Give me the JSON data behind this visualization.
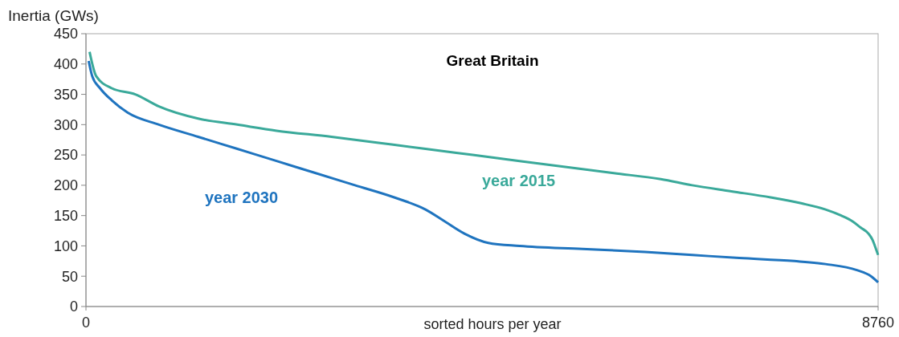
{
  "chart_data": {
    "type": "line",
    "title": "Great Britain",
    "ylabel": "Inertia (GWs)",
    "xlabel": "sorted hours per year",
    "xlim": [
      0,
      8760
    ],
    "xticks": [
      0,
      8760
    ],
    "ylim": [
      0,
      450
    ],
    "yticks": [
      0,
      50,
      100,
      150,
      200,
      250,
      300,
      350,
      400,
      450
    ],
    "grid": false,
    "legend": false,
    "marker": "none",
    "line_style": "solid",
    "series": [
      {
        "name": "year 2015",
        "color": "#3aa99a",
        "x": [
          40,
          113,
          286,
          546,
          807,
          1240,
          1674,
          2108,
          2715,
          3235,
          3755,
          4276,
          4796,
          5317,
          5837,
          6357,
          6704,
          7138,
          7571,
          7918,
          8179,
          8352,
          8482,
          8569,
          8655,
          8698,
          8724,
          8760
        ],
        "values": [
          420,
          380,
          360,
          350,
          330,
          310,
          300,
          290,
          280,
          270,
          260,
          250,
          240,
          230,
          220,
          210,
          200,
          190,
          180,
          170,
          160,
          150,
          140,
          130,
          120,
          110,
          100,
          85
        ]
      },
      {
        "name": "year 2030",
        "color": "#1f74bf",
        "x": [
          30,
          69,
          156,
          286,
          460,
          807,
          1240,
          1674,
          2108,
          2541,
          2975,
          3409,
          3755,
          3972,
          4189,
          4449,
          4796,
          5490,
          6184,
          6704,
          7225,
          7832,
          8179,
          8525,
          8681,
          8760
        ],
        "values": [
          405,
          380,
          360,
          340,
          320,
          300,
          280,
          260,
          240,
          220,
          200,
          180,
          160,
          140,
          120,
          105,
          100,
          95,
          90,
          85,
          80,
          75,
          70,
          60,
          50,
          40
        ]
      }
    ]
  }
}
